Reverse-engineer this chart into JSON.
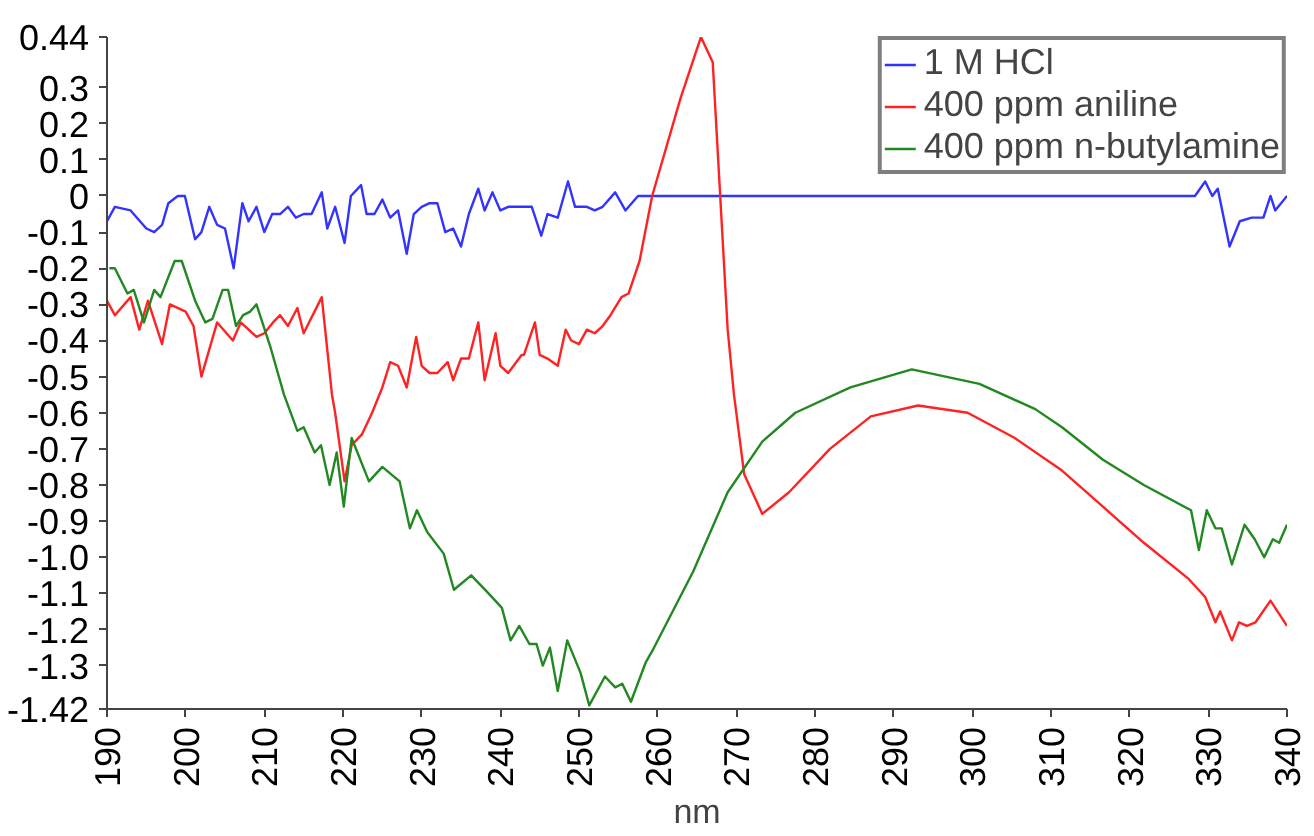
{
  "chart_data": {
    "type": "line",
    "xlabel": "nm",
    "xlim": [
      190,
      340
    ],
    "xticks": [
      190,
      200,
      210,
      220,
      230,
      240,
      250,
      260,
      270,
      280,
      290,
      300,
      310,
      320,
      330,
      340
    ],
    "ylim": [
      -1.42,
      0.44
    ],
    "yticks": [
      0.44,
      0.3,
      0.2,
      0.1,
      0,
      -0.1,
      -0.2,
      -0.3,
      -0.4,
      -0.5,
      -0.6,
      -0.7,
      -0.8,
      -0.9,
      {
        "value": -1.0,
        "label": "-1.0"
      },
      -1.1,
      -1.2,
      -1.3,
      -1.42
    ],
    "grid": false,
    "legend": "top right",
    "marker": "none",
    "line_style": "solid",
    "series": [
      {
        "name": "1 M HCl",
        "color": "#3333ff",
        "x": [
          190,
          191,
          193,
          195,
          196,
          197,
          197.8,
          199,
          199.9,
          201.2,
          202,
          203,
          204,
          205,
          206.1,
          207.2,
          208,
          209,
          210,
          211,
          212,
          213,
          214,
          215,
          216,
          217.3,
          218,
          219,
          220.2,
          221,
          222.3,
          223,
          224,
          225,
          226,
          227,
          228.1,
          229,
          230,
          231,
          232,
          233,
          234,
          235,
          236,
          237.2,
          238,
          239,
          240,
          241,
          242,
          243,
          244,
          245.2,
          246,
          247.3,
          248.6,
          249.5,
          251,
          252,
          253,
          254.6,
          255.9,
          257.5,
          260,
          270,
          280,
          290,
          300,
          310,
          320,
          328.3,
          329.6,
          330.5,
          331.2,
          332.7,
          334,
          335.5,
          337,
          337.9,
          338.5,
          340
        ],
        "values": [
          -0.07,
          -0.03,
          -0.04,
          -0.09,
          -0.1,
          -0.08,
          -0.02,
          0.0,
          0.0,
          -0.12,
          -0.1,
          -0.03,
          -0.08,
          -0.09,
          -0.2,
          -0.02,
          -0.07,
          -0.03,
          -0.1,
          -0.05,
          -0.05,
          -0.03,
          -0.06,
          -0.05,
          -0.05,
          0.01,
          -0.09,
          -0.03,
          -0.13,
          0.0,
          0.03,
          -0.05,
          -0.05,
          -0.01,
          -0.06,
          -0.04,
          -0.16,
          -0.05,
          -0.03,
          -0.02,
          -0.02,
          -0.1,
          -0.09,
          -0.14,
          -0.05,
          0.02,
          -0.04,
          0.01,
          -0.04,
          -0.03,
          -0.03,
          -0.03,
          -0.03,
          -0.11,
          -0.05,
          -0.06,
          0.04,
          -0.03,
          -0.03,
          -0.04,
          -0.03,
          0.01,
          -0.04,
          0.0,
          0.0,
          0.0,
          0.0,
          0.0,
          0.0,
          0.0,
          0.0,
          0.0,
          0.04,
          0.0,
          0.02,
          -0.14,
          -0.07,
          -0.06,
          -0.06,
          0.0,
          -0.04,
          0.0
        ]
      },
      {
        "name": "400 ppm aniline",
        "color": "#ff2222",
        "x": [
          190,
          191,
          193,
          194.1,
          195.2,
          197,
          198,
          200,
          201,
          202,
          204,
          206,
          207,
          209,
          210,
          211.1,
          212,
          213,
          214.2,
          215,
          217.3,
          218.6,
          219,
          220.2,
          221.1,
          222.4,
          223.7,
          225,
          226,
          227,
          228.1,
          229.3,
          230,
          231,
          232,
          233.3,
          234,
          235,
          236,
          237.2,
          238,
          239.4,
          240,
          241,
          242.7,
          243,
          244.4,
          245,
          246,
          247.3,
          248.3,
          249,
          250,
          251,
          252,
          253,
          254,
          255.4,
          256.3,
          257.7,
          259.3,
          262.9,
          265.5,
          267,
          268.9,
          269.7,
          271,
          273.3,
          276.7,
          281.9,
          287.1,
          293.1,
          299.4,
          305.4,
          311.4,
          316.6,
          321.8,
          327.5,
          329.6,
          330.9,
          331.5,
          333,
          333.9,
          334.9,
          336,
          337.9,
          340
        ],
        "values": [
          -0.29,
          -0.33,
          -0.28,
          -0.37,
          -0.29,
          -0.41,
          -0.3,
          -0.32,
          -0.36,
          -0.5,
          -0.35,
          -0.4,
          -0.35,
          -0.39,
          -0.38,
          -0.35,
          -0.33,
          -0.36,
          -0.31,
          -0.38,
          -0.28,
          -0.55,
          -0.6,
          -0.79,
          -0.69,
          -0.66,
          -0.6,
          -0.53,
          -0.46,
          -0.47,
          -0.53,
          -0.39,
          -0.47,
          -0.49,
          -0.49,
          -0.46,
          -0.51,
          -0.45,
          -0.45,
          -0.35,
          -0.51,
          -0.38,
          -0.47,
          -0.49,
          -0.44,
          -0.44,
          -0.35,
          -0.44,
          -0.45,
          -0.47,
          -0.37,
          -0.4,
          -0.41,
          -0.37,
          -0.38,
          -0.36,
          -0.33,
          -0.28,
          -0.27,
          -0.18,
          0.0,
          0.27,
          0.44,
          0.37,
          -0.37,
          -0.55,
          -0.77,
          -0.88,
          -0.82,
          -0.7,
          -0.61,
          -0.58,
          -0.6,
          -0.67,
          -0.76,
          -0.86,
          -0.96,
          -1.06,
          -1.11,
          -1.18,
          -1.15,
          -1.23,
          -1.18,
          -1.19,
          -1.18,
          -1.12,
          -1.19
        ]
      },
      {
        "name": "400 ppm n-butylamine",
        "color": "#228822",
        "x": [
          190.3,
          191,
          192.6,
          193.4,
          194.7,
          196,
          196.8,
          198.6,
          199.5,
          201.2,
          202.5,
          203.4,
          204.7,
          205.4,
          206.4,
          207.3,
          208.2,
          209,
          210.8,
          212.5,
          214.2,
          215,
          216.4,
          217.2,
          218.3,
          219.2,
          220.1,
          221.1,
          223.3,
          225,
          227.2,
          228.5,
          229.4,
          230.7,
          232.8,
          234.1,
          236.3,
          238.5,
          240.2,
          241.3,
          242.4,
          243.7,
          244.6,
          245.4,
          246.3,
          247.3,
          248.5,
          250.2,
          251.3,
          253.3,
          254.6,
          255.5,
          256.6,
          258.5,
          259.3,
          264.5,
          268.9,
          273.3,
          277.5,
          284.5,
          292.3,
          300.9,
          308,
          311.4,
          316.6,
          321.8,
          327.8,
          328.8,
          329.8,
          330.9,
          331.7,
          333,
          334.6,
          335.9,
          337.1,
          338.2,
          339,
          340
        ],
        "values": [
          -0.2,
          -0.2,
          -0.27,
          -0.26,
          -0.35,
          -0.26,
          -0.28,
          -0.18,
          -0.18,
          -0.29,
          -0.35,
          -0.34,
          -0.26,
          -0.26,
          -0.36,
          -0.33,
          -0.32,
          -0.3,
          -0.42,
          -0.55,
          -0.65,
          -0.64,
          -0.71,
          -0.69,
          -0.8,
          -0.71,
          -0.86,
          -0.67,
          -0.79,
          -0.75,
          -0.79,
          -0.92,
          -0.87,
          -0.93,
          -0.99,
          -1.09,
          -1.05,
          -1.1,
          -1.14,
          -1.23,
          -1.19,
          -1.24,
          -1.24,
          -1.3,
          -1.25,
          -1.37,
          -1.23,
          -1.32,
          -1.41,
          -1.33,
          -1.36,
          -1.35,
          -1.4,
          -1.29,
          -1.26,
          -1.04,
          -0.82,
          -0.68,
          -0.6,
          -0.53,
          -0.48,
          -0.52,
          -0.59,
          -0.64,
          -0.73,
          -0.8,
          -0.87,
          -0.98,
          -0.87,
          -0.92,
          -0.92,
          -1.02,
          -0.91,
          -0.95,
          -1.0,
          -0.95,
          -0.96,
          -0.91
        ]
      }
    ]
  }
}
